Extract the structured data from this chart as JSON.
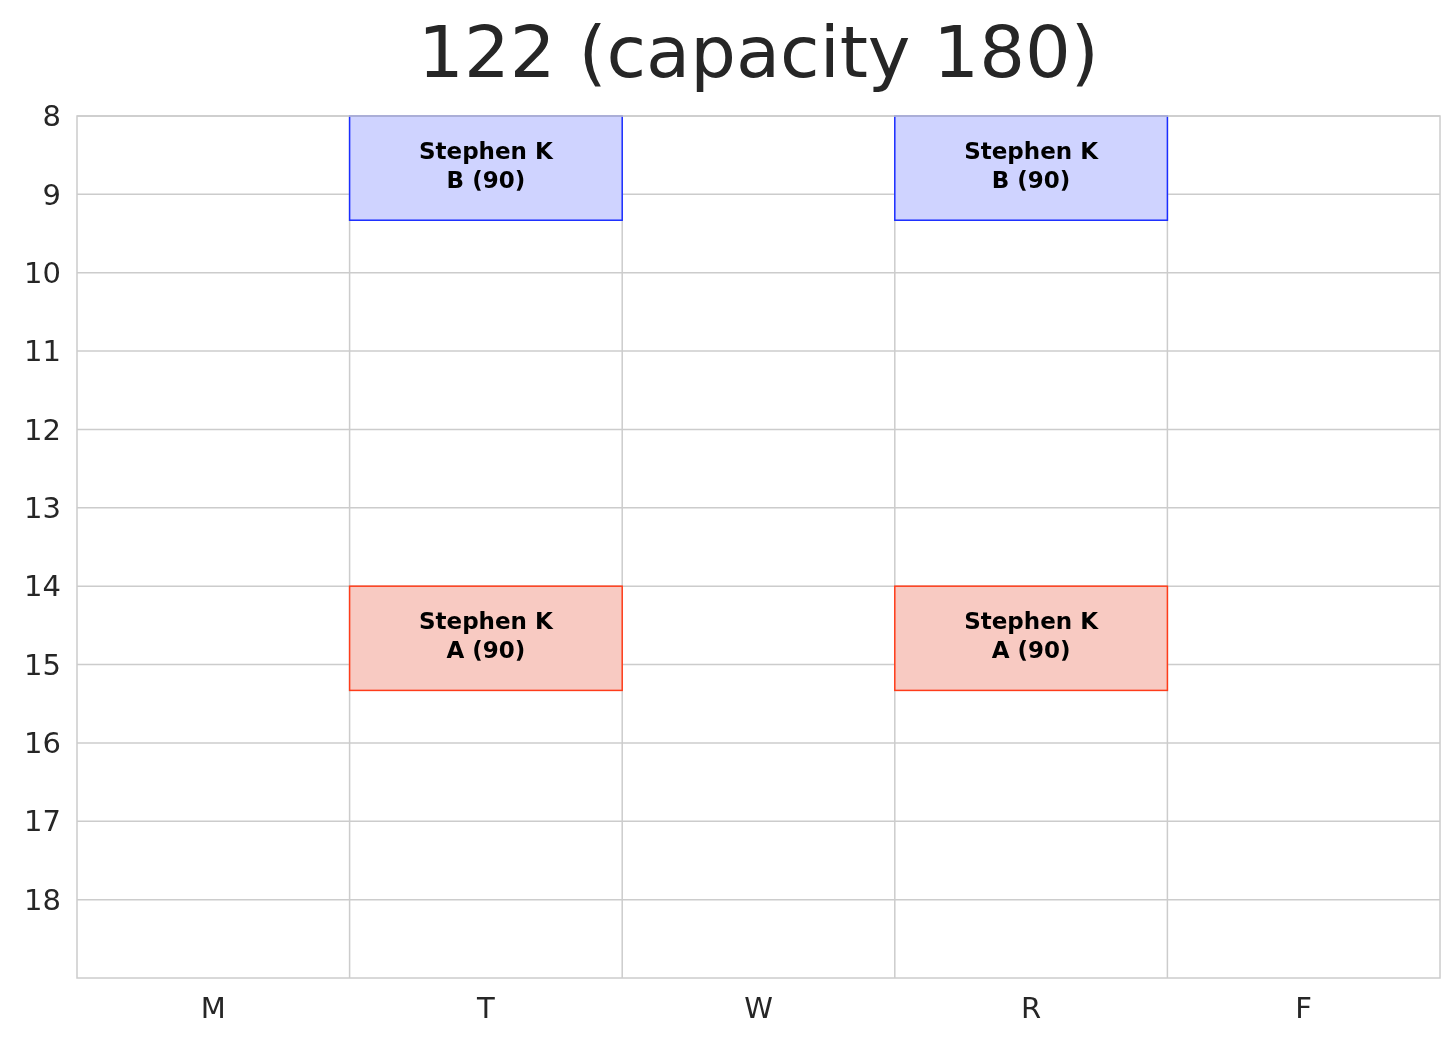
{
  "chart_data": {
    "type": "bar",
    "title": "122 (capacity 180)",
    "categories": [
      "M",
      "T",
      "W",
      "R",
      "F"
    ],
    "series": [
      {
        "color": "#cfd3ff",
        "values": [
          null,
          1.33,
          null,
          1.33,
          null
        ],
        "base": [
          null,
          8,
          null,
          8,
          null
        ]
      },
      {
        "color": "#f8cac2",
        "values": [
          null,
          1.33,
          null,
          1.33,
          null
        ],
        "base": [
          null,
          14,
          null,
          14,
          null
        ]
      }
    ],
    "annotations": [
      {
        "text": "Stephen K\nB (90)",
        "x": "T",
        "y": 8
      },
      {
        "text": "Stephen K\nB (90)",
        "x": "R",
        "y": 8
      },
      {
        "text": "Stephen K\nA (90)",
        "x": "T",
        "y": 14
      },
      {
        "text": "Stephen K\nA (90)",
        "x": "R",
        "y": 14
      }
    ],
    "ylim": [
      19,
      8
    ],
    "yticks": [
      8,
      9,
      10,
      11,
      12,
      13,
      14,
      15,
      16,
      17,
      18
    ],
    "grid": true
  }
}
